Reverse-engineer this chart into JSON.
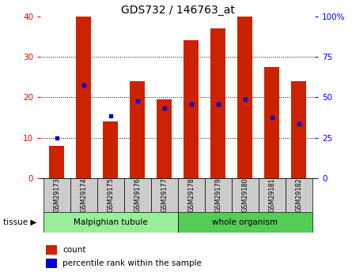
{
  "title": "GDS732 / 146763_at",
  "samples": [
    "GSM29173",
    "GSM29174",
    "GSM29175",
    "GSM29176",
    "GSM29177",
    "GSM29178",
    "GSM29179",
    "GSM29180",
    "GSM29181",
    "GSM29182"
  ],
  "counts": [
    8,
    40,
    14,
    24,
    19.5,
    34,
    37,
    40,
    27.5,
    24
  ],
  "percentile_ranks": [
    25,
    57.5,
    38.5,
    47.5,
    43.5,
    46,
    46,
    48.5,
    37.5,
    33.5
  ],
  "bar_color": "#cc2200",
  "dot_color": "#0000cc",
  "ylim_left": [
    0,
    40
  ],
  "ylim_right": [
    0,
    100
  ],
  "yticks_left": [
    0,
    10,
    20,
    30,
    40
  ],
  "yticks_right": [
    0,
    25,
    50,
    75,
    100
  ],
  "ytick_labels_right": [
    "0",
    "25",
    "50",
    "75",
    "100%"
  ],
  "tissue_groups": [
    {
      "label": "Malpighian tubule",
      "start": 0,
      "end": 5,
      "color": "#99ee99"
    },
    {
      "label": "whole organism",
      "start": 5,
      "end": 10,
      "color": "#55cc55"
    }
  ],
  "tissue_label": "tissue ▶",
  "legend_count_label": "count",
  "legend_pct_label": "percentile rank within the sample",
  "bg_color": "#ffffff"
}
